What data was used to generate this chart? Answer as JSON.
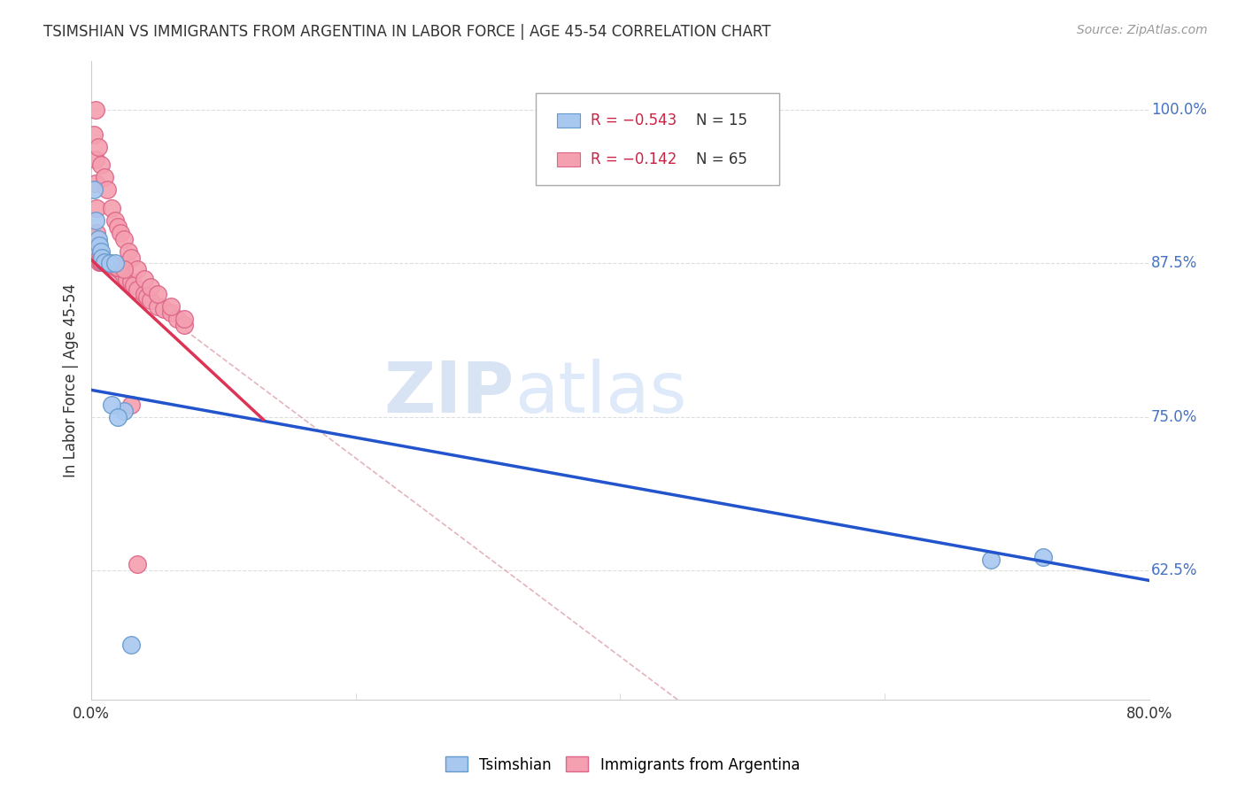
{
  "title": "TSIMSHIAN VS IMMIGRANTS FROM ARGENTINA IN LABOR FORCE | AGE 45-54 CORRELATION CHART",
  "source": "Source: ZipAtlas.com",
  "ylabel": "In Labor Force | Age 45-54",
  "ytick_values": [
    0.625,
    0.75,
    0.875,
    1.0
  ],
  "ytick_labels": [
    "62.5%",
    "75.0%",
    "87.5%",
    "100.0%"
  ],
  "xlim": [
    0.0,
    0.8
  ],
  "ylim": [
    0.52,
    1.04
  ],
  "legend_r1": "R = −0.543",
  "legend_n1": "N = 15",
  "legend_r2": "R = −0.142",
  "legend_n2": "N = 65",
  "tsimshian_color": "#a8c8f0",
  "argentina_color": "#f4a0b0",
  "tsimshian_edge": "#6699cc",
  "argentina_edge": "#dd6688",
  "regression_blue_color": "#2255cc",
  "regression_pink_color": "#dd3355",
  "regression_dashed_color": "#e0a0aa",
  "watermark_zip_color": "#c8d8f0",
  "watermark_atlas_color": "#d0e0f8",
  "blue_line_x": [
    0.0,
    0.8
  ],
  "blue_line_y": [
    0.772,
    0.617
  ],
  "pink_line_x": [
    0.0,
    0.13
  ],
  "pink_line_y": [
    0.878,
    0.748
  ],
  "dashed_line_x": [
    0.0,
    0.8
  ],
  "dashed_line_y": [
    0.878,
    0.232
  ],
  "tsimshian_x": [
    0.002,
    0.003,
    0.005,
    0.006,
    0.007,
    0.008,
    0.01,
    0.014,
    0.018,
    0.025,
    0.68,
    0.72,
    0.015,
    0.02,
    0.03
  ],
  "tsimshian_y": [
    0.935,
    0.91,
    0.895,
    0.89,
    0.885,
    0.88,
    0.876,
    0.875,
    0.875,
    0.755,
    0.634,
    0.636,
    0.76,
    0.75,
    0.565
  ],
  "argentina_x": [
    0.002,
    0.003,
    0.003,
    0.004,
    0.004,
    0.005,
    0.005,
    0.006,
    0.006,
    0.007,
    0.007,
    0.008,
    0.008,
    0.009,
    0.01,
    0.011,
    0.012,
    0.013,
    0.014,
    0.015,
    0.016,
    0.017,
    0.018,
    0.019,
    0.02,
    0.021,
    0.022,
    0.023,
    0.025,
    0.027,
    0.03,
    0.032,
    0.035,
    0.04,
    0.042,
    0.045,
    0.05,
    0.055,
    0.06,
    0.065,
    0.07,
    0.003,
    0.005,
    0.007,
    0.01,
    0.012,
    0.015,
    0.018,
    0.02,
    0.022,
    0.025,
    0.028,
    0.03,
    0.035,
    0.04,
    0.045,
    0.05,
    0.06,
    0.07,
    0.01,
    0.015,
    0.02,
    0.025,
    0.03,
    0.035
  ],
  "argentina_y": [
    0.98,
    0.96,
    0.94,
    0.92,
    0.9,
    0.885,
    0.878,
    0.877,
    0.876,
    0.876,
    0.876,
    0.876,
    0.876,
    0.876,
    0.876,
    0.875,
    0.875,
    0.875,
    0.874,
    0.874,
    0.874,
    0.873,
    0.873,
    0.872,
    0.872,
    0.87,
    0.87,
    0.868,
    0.865,
    0.862,
    0.86,
    0.857,
    0.854,
    0.85,
    0.848,
    0.845,
    0.84,
    0.838,
    0.835,
    0.83,
    0.825,
    1.0,
    0.97,
    0.955,
    0.945,
    0.935,
    0.92,
    0.91,
    0.905,
    0.9,
    0.895,
    0.885,
    0.88,
    0.87,
    0.862,
    0.856,
    0.85,
    0.84,
    0.83,
    0.876,
    0.874,
    0.872,
    0.87,
    0.76,
    0.63
  ]
}
